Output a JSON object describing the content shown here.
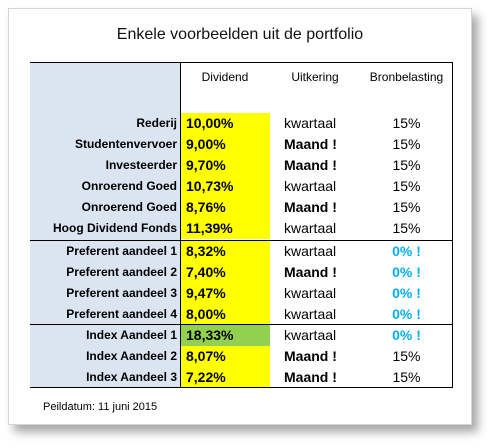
{
  "title": "Enkele voorbeelden uit de portfolio",
  "headers": {
    "dividend": "Dividend",
    "uitkering": "Uitkering",
    "bronbelasting": "Bronbelasting"
  },
  "rows": [
    {
      "name": "Rederij",
      "dividend": "10,00%",
      "uitkering": "kwartaal",
      "bron": "15%"
    },
    {
      "name": "Studentenvervoer",
      "dividend": "9,00%",
      "uitkering": "Maand !",
      "bron": "15%"
    },
    {
      "name": "Investeerder",
      "dividend": "9,70%",
      "uitkering": "Maand !",
      "bron": "15%"
    },
    {
      "name": "Onroerend Goed",
      "dividend": "10,73%",
      "uitkering": "kwartaal",
      "bron": "15%"
    },
    {
      "name": "Onroerend Goed",
      "dividend": "8,76%",
      "uitkering": "Maand !",
      "bron": "15%"
    },
    {
      "name": "Hoog Dividend Fonds",
      "dividend": "11,39%",
      "uitkering": "kwartaal",
      "bron": "15%"
    },
    {
      "name": "Preferent aandeel 1",
      "dividend": "8,32%",
      "uitkering": "kwartaal",
      "bron": "0% !"
    },
    {
      "name": "Preferent aandeel 2",
      "dividend": "7,40%",
      "uitkering": "Maand !",
      "bron": "0% !"
    },
    {
      "name": "Preferent aandeel 3",
      "dividend": "9,47%",
      "uitkering": "kwartaal",
      "bron": "0% !"
    },
    {
      "name": "Preferent aandeel 4",
      "dividend": "8,00%",
      "uitkering": "kwartaal",
      "bron": "0% !"
    },
    {
      "name": "Index Aandeel 1",
      "dividend": "18,33%",
      "uitkering": "kwartaal",
      "bron": "0% !"
    },
    {
      "name": "Index Aandeel 2",
      "dividend": "8,07%",
      "uitkering": "Maand !",
      "bron": "15%"
    },
    {
      "name": "Index Aandeel 3",
      "dividend": "7,22%",
      "uitkering": "Maand !",
      "bron": "15%"
    }
  ],
  "footer": "Peildatum: 11 juni 2015",
  "colors": {
    "label_bg": "#dbe5f1",
    "dividend_bg": "#ffff00",
    "highlight_bg": "#92d050",
    "accent_text": "#00b0f0"
  }
}
